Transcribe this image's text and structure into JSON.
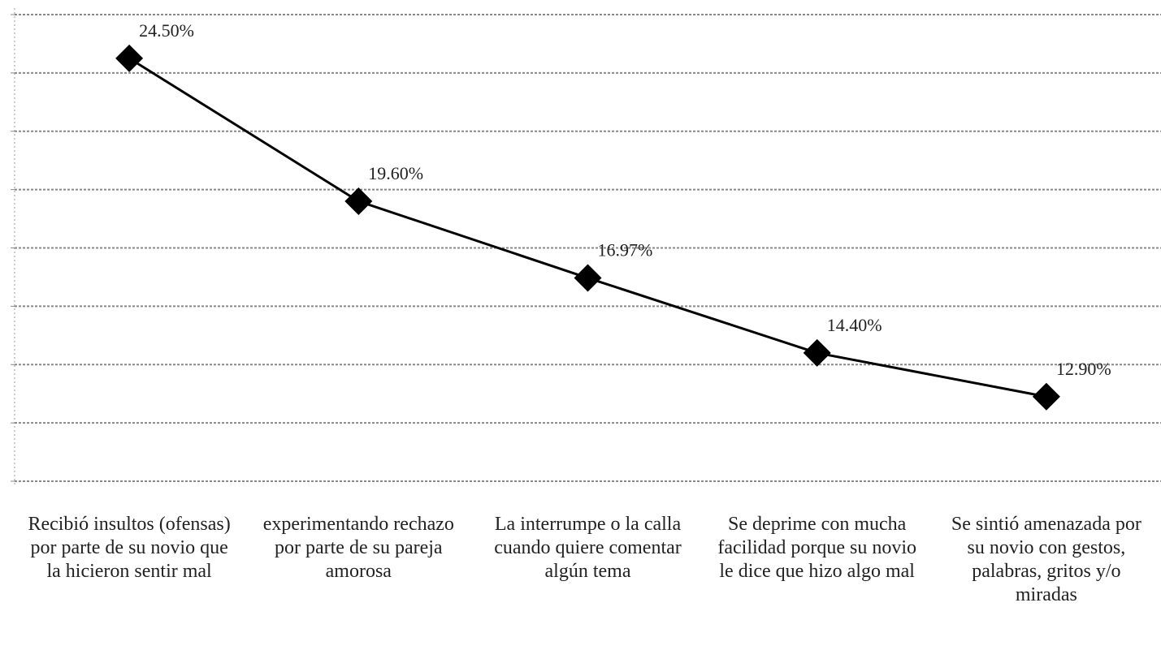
{
  "chart_data": {
    "type": "line",
    "categories": [
      "Recibió insultos (ofensas) por parte de su novio que la hicieron sentir mal",
      "experimentando rechazo por parte de su pareja amorosa",
      "La interrumpe o la calla cuando quiere comentar algún tema",
      "Se deprime con mucha facilidad porque su novio le dice que hizo algo mal",
      "Se sintió amenazada por su novio con gestos, palabras, gritos y/o miradas"
    ],
    "values": [
      24.5,
      19.6,
      16.97,
      14.4,
      12.9
    ],
    "value_labels": [
      "24.50%",
      "19.60%",
      "16.97%",
      "14.40%",
      "12.90%"
    ],
    "color": "#000000",
    "ylim": [
      10,
      26
    ],
    "yticks": [
      10,
      12,
      14,
      16,
      18,
      20,
      22,
      24,
      26
    ],
    "grid": true
  }
}
